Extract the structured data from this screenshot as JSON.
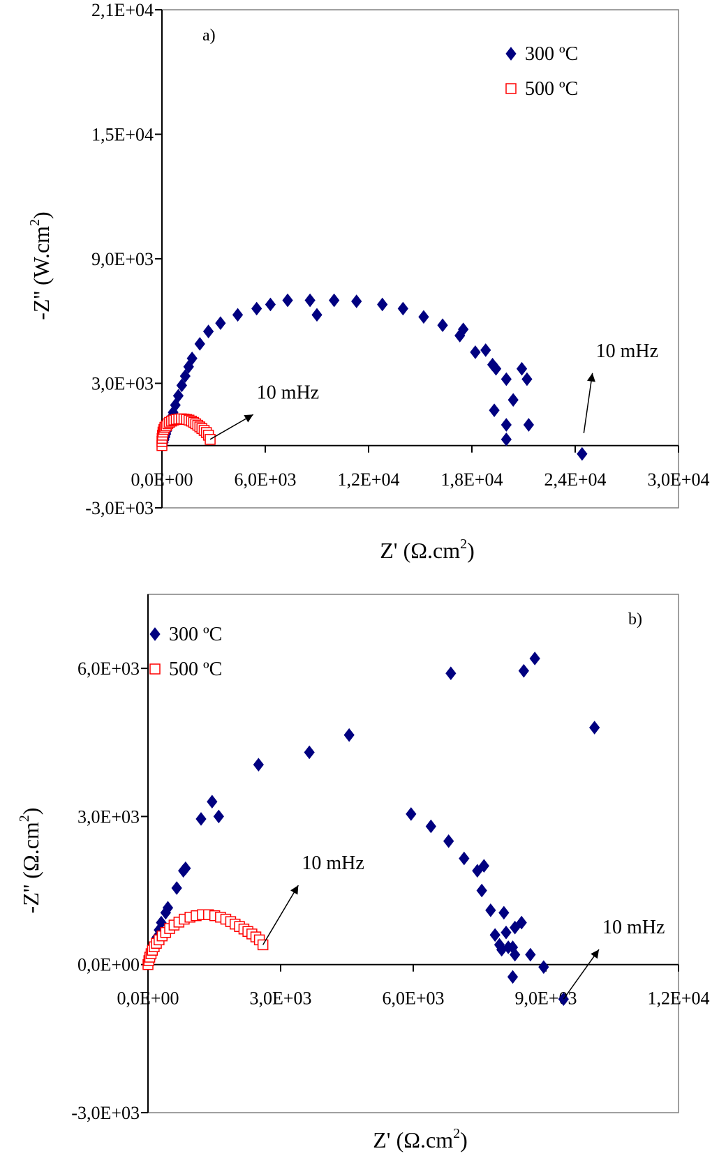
{
  "chart_data": [
    {
      "type": "scatter",
      "panel_label": "a)",
      "xlabel": "Z' (Ω.cm",
      "xlabel_sup": "2",
      "xlabel_end": ")",
      "ylabel": "-Z'' (W.cm",
      "ylabel_sup": "2",
      "ylabel_end": ")",
      "xlim": [
        0,
        30000
      ],
      "ylim": [
        -3000,
        21000
      ],
      "xticks": [
        0,
        6000,
        12000,
        18000,
        24000,
        30000
      ],
      "xtick_labels": [
        "0,0E+00",
        "6,0E+03",
        "1,2E+04",
        "1,8E+04",
        "2,4E+04",
        "3,0E+04"
      ],
      "yticks": [
        -3000,
        3000,
        9000,
        15000,
        21000
      ],
      "ytick_labels": [
        "-3,0E+03",
        "3,0E+03",
        "9,0E+03",
        "1,5E+04",
        "2,1E+04"
      ],
      "legend_position": "top-right",
      "annotations": [
        {
          "text": "10 mHz",
          "target": [
            2800,
            300
          ],
          "label_at": [
            5300,
            2100
          ]
        },
        {
          "text": "10 mHz",
          "target": [
            24500,
            600
          ],
          "label_at": [
            25000,
            4100
          ]
        }
      ],
      "series": [
        {
          "name": "300 ºC",
          "marker": "diamond",
          "color": "#000080",
          "points": [
            [
              40,
              60
            ],
            [
              80,
              150
            ],
            [
              130,
              280
            ],
            [
              180,
              420
            ],
            [
              230,
              560
            ],
            [
              290,
              720
            ],
            [
              350,
              880
            ],
            [
              420,
              1050
            ],
            [
              480,
              1200
            ],
            [
              560,
              1380
            ],
            [
              650,
              1600
            ],
            [
              780,
              1950
            ],
            [
              950,
              2400
            ],
            [
              1150,
              2900
            ],
            [
              1350,
              3350
            ],
            [
              1550,
              3800
            ],
            [
              1750,
              4200
            ],
            [
              2200,
              4900
            ],
            [
              2700,
              5500
            ],
            [
              3400,
              5900
            ],
            [
              4400,
              6300
            ],
            [
              5500,
              6600
            ],
            [
              6300,
              6800
            ],
            [
              7300,
              7000
            ],
            [
              8600,
              7000
            ],
            [
              9000,
              6300
            ],
            [
              10000,
              7000
            ],
            [
              11300,
              6950
            ],
            [
              12800,
              6800
            ],
            [
              14000,
              6600
            ],
            [
              15200,
              6200
            ],
            [
              16300,
              5800
            ],
            [
              17300,
              5300
            ],
            [
              17500,
              5600
            ],
            [
              18200,
              4500
            ],
            [
              18800,
              4600
            ],
            [
              19200,
              3900
            ],
            [
              19400,
              3700
            ],
            [
              19300,
              1700
            ],
            [
              20000,
              3200
            ],
            [
              20000,
              1000
            ],
            [
              20000,
              300
            ],
            [
              20400,
              2200
            ],
            [
              20900,
              3700
            ],
            [
              21200,
              3200
            ],
            [
              21300,
              1000
            ],
            [
              24400,
              -400
            ]
          ]
        },
        {
          "name": "500 ºC",
          "marker": "square-open",
          "color": "#ff0000",
          "points": [
            [
              0,
              0
            ],
            [
              0,
              200
            ],
            [
              10,
              350
            ],
            [
              30,
              500
            ],
            [
              60,
              650
            ],
            [
              110,
              780
            ],
            [
              170,
              880
            ],
            [
              250,
              950
            ],
            [
              340,
              1050
            ],
            [
              440,
              1120
            ],
            [
              560,
              1180
            ],
            [
              690,
              1230
            ],
            [
              830,
              1260
            ],
            [
              980,
              1280
            ],
            [
              1130,
              1290
            ],
            [
              1280,
              1280
            ],
            [
              1430,
              1260
            ],
            [
              1570,
              1230
            ],
            [
              1710,
              1180
            ],
            [
              1840,
              1120
            ],
            [
              1960,
              1050
            ],
            [
              2080,
              980
            ],
            [
              2200,
              900
            ],
            [
              2320,
              820
            ],
            [
              2450,
              730
            ],
            [
              2580,
              630
            ],
            [
              2700,
              500
            ],
            [
              2800,
              300
            ]
          ]
        }
      ]
    },
    {
      "type": "scatter",
      "panel_label": "b)",
      "xlabel": "Z' (Ω.cm",
      "xlabel_sup": "2",
      "xlabel_end": ")",
      "ylabel": "-Z'' (Ω.cm",
      "ylabel_sup": "2",
      "ylabel_end": ")",
      "xlim": [
        0,
        12000
      ],
      "ylim": [
        -3000,
        7500
      ],
      "xticks": [
        0,
        3000,
        6000,
        9000,
        12000
      ],
      "xtick_labels": [
        "0,0E+00",
        "3,0E+03",
        "6,0E+03",
        "9,0E+03",
        "1,2E+04"
      ],
      "yticks": [
        -3000,
        0,
        3000,
        6000
      ],
      "ytick_labels": [
        "-3,0E+03",
        "0,0E+00",
        "3,0E+03",
        "6,0E+03"
      ],
      "legend_position": "top-left",
      "annotations": [
        {
          "text": "10 mHz",
          "target": [
            2600,
            400
          ],
          "label_at": [
            3400,
            1860
          ]
        },
        {
          "text": "10 mHz",
          "target": [
            9400,
            -700
          ],
          "label_at": [
            10200,
            560
          ]
        }
      ],
      "series": [
        {
          "name": "300 ºC",
          "marker": "diamond",
          "color": "#000080",
          "points": [
            [
              50,
              100
            ],
            [
              100,
              250
            ],
            [
              150,
              400
            ],
            [
              200,
              550
            ],
            [
              250,
              700
            ],
            [
              300,
              850
            ],
            [
              400,
              1050
            ],
            [
              450,
              1150
            ],
            [
              650,
              1550
            ],
            [
              800,
              1900
            ],
            [
              850,
              1950
            ],
            [
              1200,
              2950
            ],
            [
              1450,
              3300
            ],
            [
              1600,
              3000
            ],
            [
              2500,
              4050
            ],
            [
              3650,
              4300
            ],
            [
              4550,
              4650
            ],
            [
              5950,
              3050
            ],
            [
              6400,
              2800
            ],
            [
              6800,
              2500
            ],
            [
              7150,
              2150
            ],
            [
              7450,
              1900
            ],
            [
              7600,
              2000
            ],
            [
              7550,
              1500
            ],
            [
              7750,
              1100
            ],
            [
              7850,
              600
            ],
            [
              7950,
              400
            ],
            [
              8000,
              300
            ],
            [
              8050,
              1050
            ],
            [
              8100,
              650
            ],
            [
              8150,
              350
            ],
            [
              8250,
              -250
            ],
            [
              8250,
              350
            ],
            [
              8300,
              750
            ],
            [
              8300,
              200
            ],
            [
              8450,
              850
            ],
            [
              8650,
              200
            ],
            [
              8950,
              -50
            ],
            [
              9400,
              -700
            ],
            [
              6850,
              5900
            ],
            [
              8500,
              5950
            ],
            [
              8750,
              6200
            ],
            [
              10100,
              4800
            ]
          ]
        },
        {
          "name": "500 ºC",
          "marker": "square-open",
          "color": "#ff0000",
          "points": [
            [
              0,
              0
            ],
            [
              20,
              80
            ],
            [
              40,
              150
            ],
            [
              70,
              220
            ],
            [
              100,
              290
            ],
            [
              140,
              360
            ],
            [
              190,
              430
            ],
            [
              250,
              500
            ],
            [
              320,
              580
            ],
            [
              400,
              650
            ],
            [
              490,
              730
            ],
            [
              590,
              800
            ],
            [
              700,
              860
            ],
            [
              820,
              920
            ],
            [
              950,
              960
            ],
            [
              1090,
              990
            ],
            [
              1230,
              1010
            ],
            [
              1370,
              1010
            ],
            [
              1510,
              990
            ],
            [
              1640,
              960
            ],
            [
              1760,
              920
            ],
            [
              1870,
              870
            ],
            [
              1970,
              820
            ],
            [
              2070,
              770
            ],
            [
              2170,
              720
            ],
            [
              2260,
              670
            ],
            [
              2350,
              620
            ],
            [
              2440,
              560
            ],
            [
              2520,
              500
            ],
            [
              2600,
              400
            ]
          ]
        }
      ]
    }
  ]
}
